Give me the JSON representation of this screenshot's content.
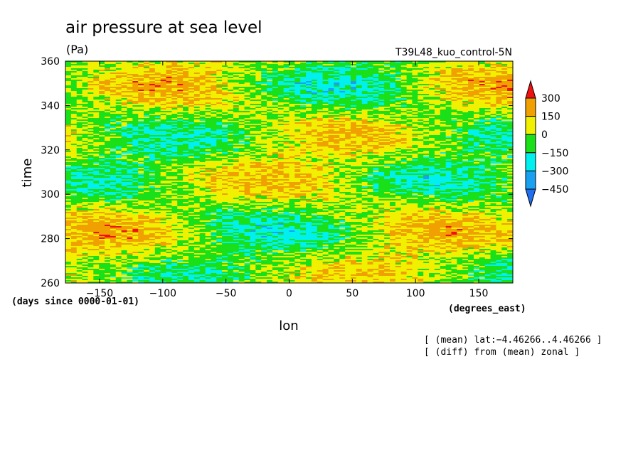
{
  "chart_data": {
    "type": "heatmap",
    "title": "air pressure at sea level",
    "units": "(Pa)",
    "run_label": "T39L48_kuo_control-5N",
    "xlabel": "lon",
    "x_units": "(degrees_east)",
    "ylabel": "time",
    "y_units": "(days since 0000-01-01)",
    "xlim": [
      -177,
      177
    ],
    "ylim": [
      260,
      360
    ],
    "x_ticks": [
      -150,
      -100,
      -50,
      0,
      50,
      100,
      150
    ],
    "x_tick_labels": [
      "−150",
      "−100",
      "−50",
      "0",
      "50",
      "100",
      "150"
    ],
    "y_ticks": [
      260,
      280,
      300,
      320,
      340,
      360
    ],
    "y_tick_labels": [
      "260",
      "280",
      "300",
      "320",
      "340",
      "360"
    ],
    "colorbar": {
      "levels": [
        -450,
        -300,
        -150,
        0,
        150,
        300
      ],
      "level_labels": [
        "−450",
        "−300",
        "−150",
        "0",
        "150",
        "300"
      ],
      "colors": [
        "#1f6ff0",
        "#19a0f0",
        "#00f0f0",
        "#19e019",
        "#f0f000",
        "#f0a000",
        "#f01010"
      ]
    },
    "annotations": [
      "[ (mean) lat:−4.46266..4.46266 ]",
      "[ (diff) from (mean) zonal ]"
    ]
  }
}
